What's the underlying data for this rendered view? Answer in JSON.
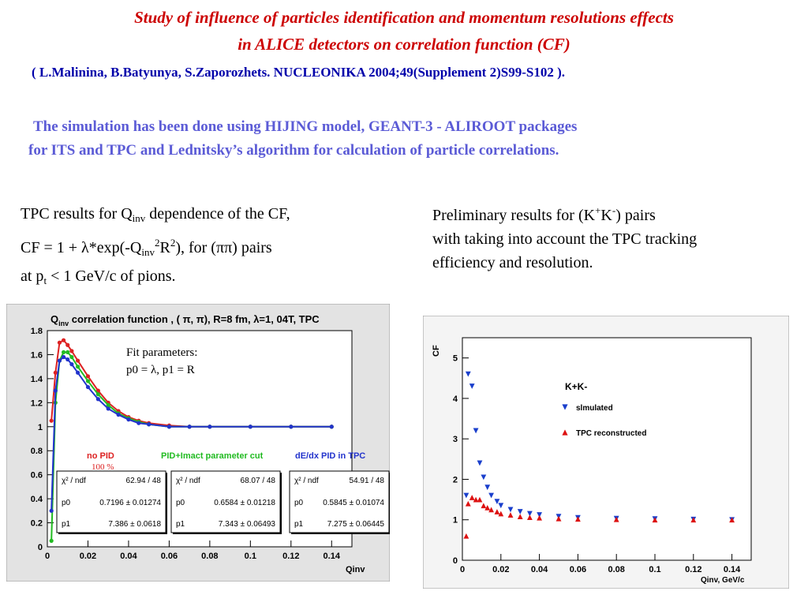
{
  "slide": {
    "title_line1": "Study of influence of particles identification and momentum resolutions effects",
    "title_line2": "in ALICE detectors  on correlation function (CF)",
    "citation": "( L.Malinina, B.Batyunya, S.Zaporozhets. NUCLEONIKA 2004;49(Supplement 2)S99-S102 ).",
    "sim_line1": "The simulation has been done using HIJING model, GEANT-3 - ALIROOT packages",
    "sim_line2": "for ITS and TPC and  Lednitsky’s algorithm  for calculation of particle correlations."
  },
  "left_desc": {
    "l1a": "TPC results for Q",
    "l1sub": "inv",
    "l1b": " dependence of the CF,",
    "l2a": "CF = 1 + λ*exp(-Q",
    "l2sub": "inv",
    "l2sup": "2",
    "l2b": "R",
    "l2sup2": "2",
    "l2c": "), for (ππ) pairs",
    "l3a": "at p",
    "l3sub": "t",
    "l3b": " < 1 GeV/c of pions."
  },
  "right_desc": {
    "l1a": "Preliminary results for (K",
    "l1sup1": "+",
    "l1b": "K",
    "l1sup2": "-",
    "l1c": ")  pairs",
    "l2": "with taking into account the TPC tracking",
    "l3": "efficiency and resolution."
  },
  "chart_data": [
    {
      "type": "scatter",
      "title": "Q_inv correlation function , (π,π), R=8 fm, λ=1, 04T, TPC",
      "title_parts": {
        "q": "Q",
        "qsub": "inv",
        "rest": " correlation function , ( π, π), R=8 fm,  λ=1, 04T, TPC"
      },
      "xlabel": "Qinv",
      "ylabel": "",
      "xlim": [
        0,
        0.15
      ],
      "ylim": [
        0,
        1.8
      ],
      "xticks": [
        "0",
        "0.02",
        "0.04",
        "0.06",
        "0.08",
        "0.1",
        "0.12",
        "0.14"
      ],
      "yticks": [
        "0",
        "0.2",
        "0.4",
        "0.6",
        "0.8",
        "1",
        "1.2",
        "1.4",
        "1.6",
        "1.8"
      ],
      "annotation_lines": [
        "Fit parameters:",
        "p0 = λ, p1 = R"
      ],
      "series": [
        {
          "name": "no PID",
          "color": "#dd2222",
          "label2": "100 %",
          "x": [
            0.002,
            0.004,
            0.006,
            0.008,
            0.01,
            0.012,
            0.015,
            0.02,
            0.025,
            0.03,
            0.035,
            0.04,
            0.045,
            0.05,
            0.06,
            0.07,
            0.08,
            0.1,
            0.12,
            0.14
          ],
          "y": [
            1.05,
            1.45,
            1.7,
            1.72,
            1.68,
            1.63,
            1.55,
            1.42,
            1.3,
            1.2,
            1.13,
            1.08,
            1.05,
            1.03,
            1.01,
            1.0,
            1.0,
            1.0,
            1.0,
            1.0
          ]
        },
        {
          "name": "PID+Imact parameter cut",
          "color": "#22bb22",
          "x": [
            0.002,
            0.004,
            0.006,
            0.008,
            0.01,
            0.012,
            0.015,
            0.02,
            0.025,
            0.03,
            0.035,
            0.04,
            0.045,
            0.05,
            0.06,
            0.07,
            0.08,
            0.1,
            0.12,
            0.14
          ],
          "y": [
            0.05,
            1.2,
            1.55,
            1.62,
            1.62,
            1.58,
            1.5,
            1.38,
            1.27,
            1.18,
            1.11,
            1.07,
            1.04,
            1.02,
            1.0,
            1.0,
            1.0,
            1.0,
            1.0,
            1.0
          ]
        },
        {
          "name": "dE/dx PID in TPC",
          "color": "#2233cc",
          "x": [
            0.002,
            0.004,
            0.006,
            0.008,
            0.01,
            0.012,
            0.015,
            0.02,
            0.025,
            0.03,
            0.035,
            0.04,
            0.045,
            0.05,
            0.06,
            0.07,
            0.08,
            0.1,
            0.12,
            0.14
          ],
          "y": [
            0.3,
            1.3,
            1.55,
            1.58,
            1.56,
            1.52,
            1.45,
            1.33,
            1.23,
            1.15,
            1.1,
            1.06,
            1.03,
            1.02,
            1.0,
            1.0,
            1.0,
            1.0,
            1.0,
            1.0
          ]
        }
      ],
      "fit_boxes": [
        {
          "chi_label": "χ² / ndf",
          "chi": "62.94 / 48",
          "p0": "0.7196",
          "p0e": "0.01274",
          "p1": "7.386",
          "p1e": "0.0618"
        },
        {
          "chi_label": "χ² / ndf",
          "chi": "68.07 / 48",
          "p0": "0.6584",
          "p0e": "0.01218",
          "p1": "7.343",
          "p1e": "0.06493"
        },
        {
          "chi_label": "χ² / ndf",
          "chi": "54.91 / 48",
          "p0": "0.5845",
          "p0e": "0.01074",
          "p1": "7.275",
          "p1e": "0.06445"
        }
      ]
    },
    {
      "type": "scatter",
      "title": "",
      "xlabel": "Qinv, GeV/c",
      "ylabel": "CF",
      "xlim": [
        0,
        0.15
      ],
      "ylim": [
        0,
        5.5
      ],
      "xticks": [
        "0",
        "0.02",
        "0.04",
        "0.06",
        "0.08",
        "0.1",
        "0.12",
        "0.14"
      ],
      "yticks": [
        "0",
        "1",
        "2",
        "3",
        "4",
        "5"
      ],
      "legend_title": "K+K-",
      "series": [
        {
          "name": "slmulated",
          "color": "#1a3fcc",
          "marker": "triangle-down",
          "x": [
            0.002,
            0.003,
            0.005,
            0.007,
            0.009,
            0.011,
            0.013,
            0.015,
            0.018,
            0.02,
            0.025,
            0.03,
            0.035,
            0.04,
            0.05,
            0.06,
            0.08,
            0.1,
            0.12,
            0.14
          ],
          "y": [
            1.6,
            4.6,
            4.3,
            3.2,
            2.4,
            2.05,
            1.8,
            1.6,
            1.45,
            1.35,
            1.25,
            1.2,
            1.15,
            1.12,
            1.08,
            1.05,
            1.03,
            1.02,
            1.01,
            1.0
          ]
        },
        {
          "name": "TPC reconstructed",
          "color": "#dd1111",
          "marker": "triangle-up",
          "x": [
            0.002,
            0.003,
            0.005,
            0.007,
            0.009,
            0.011,
            0.013,
            0.015,
            0.018,
            0.02,
            0.025,
            0.03,
            0.035,
            0.04,
            0.05,
            0.06,
            0.08,
            0.1,
            0.12,
            0.14
          ],
          "y": [
            0.6,
            1.4,
            1.55,
            1.5,
            1.5,
            1.35,
            1.3,
            1.25,
            1.2,
            1.15,
            1.12,
            1.08,
            1.06,
            1.05,
            1.03,
            1.02,
            1.01,
            1.0,
            1.0,
            1.0
          ]
        }
      ]
    }
  ]
}
